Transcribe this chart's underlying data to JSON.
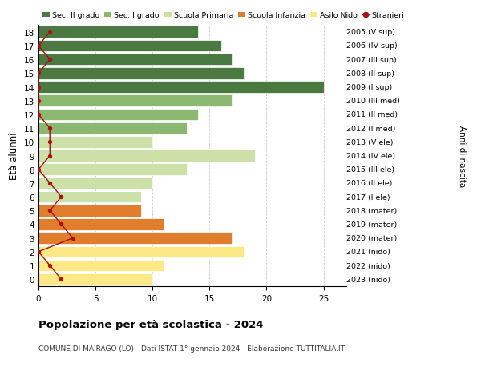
{
  "ages": [
    0,
    1,
    2,
    3,
    4,
    5,
    6,
    7,
    8,
    9,
    10,
    11,
    12,
    13,
    14,
    15,
    16,
    17,
    18
  ],
  "years": [
    "2023 (nido)",
    "2022 (nido)",
    "2021 (nido)",
    "2020 (mater)",
    "2019 (mater)",
    "2018 (mater)",
    "2017 (I ele)",
    "2016 (II ele)",
    "2015 (III ele)",
    "2014 (IV ele)",
    "2013 (V ele)",
    "2012 (I med)",
    "2011 (II med)",
    "2010 (III med)",
    "2009 (I sup)",
    "2008 (II sup)",
    "2007 (III sup)",
    "2006 (IV sup)",
    "2005 (V sup)"
  ],
  "bar_values": [
    10,
    11,
    18,
    17,
    11,
    9,
    9,
    10,
    13,
    19,
    10,
    13,
    14,
    17,
    25,
    18,
    17,
    16,
    14
  ],
  "bar_colors": [
    "#fce884",
    "#fce884",
    "#fce884",
    "#e07e2e",
    "#e07e2e",
    "#e07e2e",
    "#cce0a8",
    "#cce0a8",
    "#cce0a8",
    "#cce0a8",
    "#cce0a8",
    "#8ab870",
    "#8ab870",
    "#8ab870",
    "#4a7a42",
    "#4a7a42",
    "#4a7a42",
    "#4a7a42",
    "#4a7a42"
  ],
  "stranieri_values": [
    2,
    1,
    0,
    3,
    2,
    1,
    2,
    1,
    0,
    1,
    1,
    1,
    0,
    0,
    0,
    0,
    1,
    0,
    1
  ],
  "legend_labels": [
    "Sec. II grado",
    "Sec. I grado",
    "Scuola Primaria",
    "Scuola Infanzia",
    "Asilo Nido",
    "Stranieri"
  ],
  "legend_colors": [
    "#4a7a42",
    "#8ab870",
    "#cce0a8",
    "#e07e2e",
    "#fce884",
    "#aa1111"
  ],
  "ylabel": "Età alunni",
  "right_label": "Anni di nascita",
  "title": "Popolazione per età scolastica - 2024",
  "subtitle": "COMUNE DI MAIRAGO (LO) - Dati ISTAT 1° gennaio 2024 - Elaborazione TUTTITALIA.IT",
  "xlim": [
    0,
    27
  ],
  "xticks": [
    0,
    5,
    10,
    15,
    20,
    25
  ],
  "grid_color": "#cccccc",
  "stranieri_color": "#aa1111",
  "bar_height": 0.85
}
